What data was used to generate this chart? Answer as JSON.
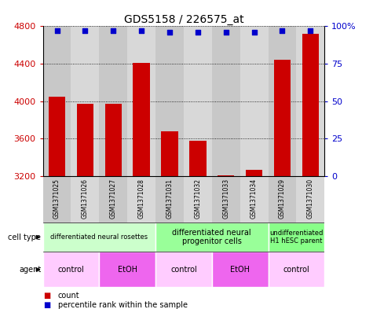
{
  "title": "GDS5158 / 226575_at",
  "samples": [
    "GSM1371025",
    "GSM1371026",
    "GSM1371027",
    "GSM1371028",
    "GSM1371031",
    "GSM1371032",
    "GSM1371033",
    "GSM1371034",
    "GSM1371029",
    "GSM1371030"
  ],
  "counts": [
    4050,
    3970,
    3975,
    4410,
    3680,
    3580,
    3210,
    3265,
    4440,
    4720
  ],
  "percentiles": [
    97,
    97,
    97,
    97,
    96,
    96,
    96,
    96,
    97,
    97
  ],
  "y_min": 3200,
  "y_max": 4800,
  "y_ticks": [
    3200,
    3600,
    4000,
    4400,
    4800
  ],
  "right_y_ticks": [
    0,
    25,
    50,
    75,
    100
  ],
  "bar_color": "#cc0000",
  "dot_color": "#0000cc",
  "col_bg_even": "#c8c8c8",
  "col_bg_odd": "#d8d8d8",
  "cell_type_groups": [
    {
      "label": "differentiated neural rosettes",
      "start": 0,
      "end": 4,
      "color": "#ccffcc",
      "fontsize": 6
    },
    {
      "label": "differentiated neural\nprogenitor cells",
      "start": 4,
      "end": 8,
      "color": "#99ff99",
      "fontsize": 7
    },
    {
      "label": "undifferentiated\nH1 hESC parent",
      "start": 8,
      "end": 10,
      "color": "#88ff88",
      "fontsize": 6
    }
  ],
  "agent_groups": [
    {
      "label": "control",
      "start": 0,
      "end": 2,
      "color": "#ffccff"
    },
    {
      "label": "EtOH",
      "start": 2,
      "end": 4,
      "color": "#ee66ee"
    },
    {
      "label": "control",
      "start": 4,
      "end": 6,
      "color": "#ffccff"
    },
    {
      "label": "EtOH",
      "start": 6,
      "end": 8,
      "color": "#ee66ee"
    },
    {
      "label": "control",
      "start": 8,
      "end": 10,
      "color": "#ffccff"
    }
  ],
  "legend_count_color": "#cc0000",
  "legend_percentile_color": "#0000cc",
  "left_label_color": "#cc0000",
  "right_label_color": "#0000cc"
}
